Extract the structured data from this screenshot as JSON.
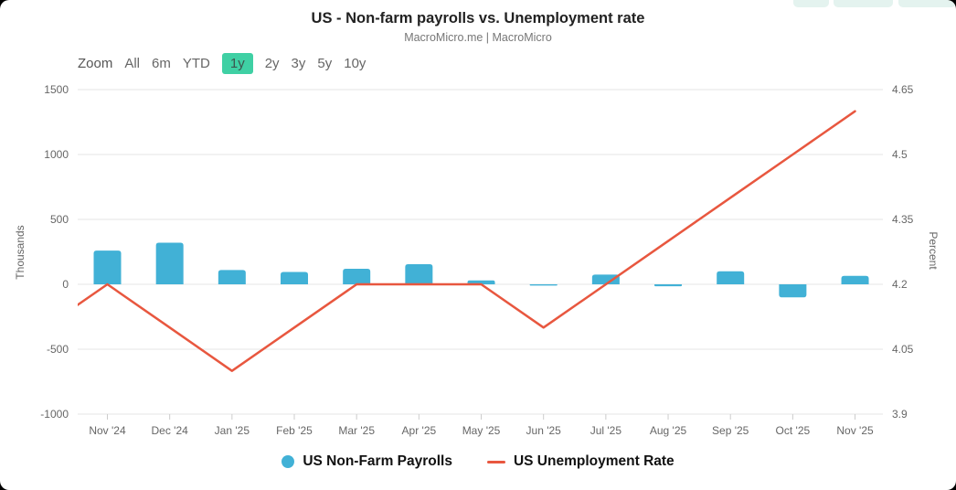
{
  "window": {
    "background": "#000000",
    "surface": "#ffffff"
  },
  "truncated_top_buttons": {
    "count": 3,
    "color": "#e4f3ef"
  },
  "header": {
    "title": "US - Non-farm payrolls vs. Unemployment rate",
    "subtitle": "MacroMicro.me | MacroMicro"
  },
  "toolbar": {
    "label": "Zoom",
    "buttons": [
      "All",
      "6m",
      "YTD",
      "1y",
      "2y",
      "3y",
      "5y",
      "10y"
    ],
    "active": "1y",
    "active_bg": "#3fd0a4",
    "active_text": "#3d564f",
    "text_color": "#666666"
  },
  "chart_data": {
    "type": "bar",
    "title": "US - Non-farm payrolls vs. Unemployment rate",
    "subtitle": "MacroMicro.me | MacroMicro",
    "categories": [
      "Nov '24",
      "Dec '24",
      "Jan '25",
      "Feb '25",
      "Mar '25",
      "Apr '25",
      "May '25",
      "Jun '25",
      "Jul '25",
      "Aug '25",
      "Sep '25",
      "Oct '25",
      "Nov '25"
    ],
    "series": [
      {
        "name": "US Non-Farm Payrolls",
        "type": "bar",
        "yaxis": "left",
        "color": "#41b1d6",
        "values": [
          260,
          320,
          110,
          95,
          120,
          155,
          30,
          -10,
          75,
          -15,
          100,
          -100,
          65
        ]
      },
      {
        "name": "US Unemployment Rate",
        "type": "line",
        "yaxis": "right",
        "color": "#e8573f",
        "values": [
          4.2,
          4.1,
          4.0,
          4.1,
          4.2,
          4.2,
          4.2,
          4.1,
          4.2,
          4.3,
          4.4,
          4.5,
          4.6
        ],
        "clipped_prev_value": 4.1
      }
    ],
    "left_axis": {
      "title": "Thousands",
      "min": -1000,
      "max": 1500,
      "tick_values": [
        1500,
        1000,
        500,
        0,
        -500,
        -1000
      ],
      "tick_labels": [
        "1500",
        "1000",
        "500",
        "0",
        "-500",
        "-1000"
      ]
    },
    "right_axis": {
      "title": "Percent",
      "min": 3.9,
      "max": 4.65,
      "tick_values": [
        4.65,
        4.5,
        4.35,
        4.2,
        4.05,
        3.9
      ],
      "tick_labels": [
        "4.65",
        "4.5",
        "4.35",
        "4.2",
        "4.05",
        "3.9"
      ]
    },
    "grid": true,
    "grid_color": "#e6e6e6",
    "tick_color": "#cccccc",
    "label_color": "#666666",
    "legend_position": "bottom"
  }
}
